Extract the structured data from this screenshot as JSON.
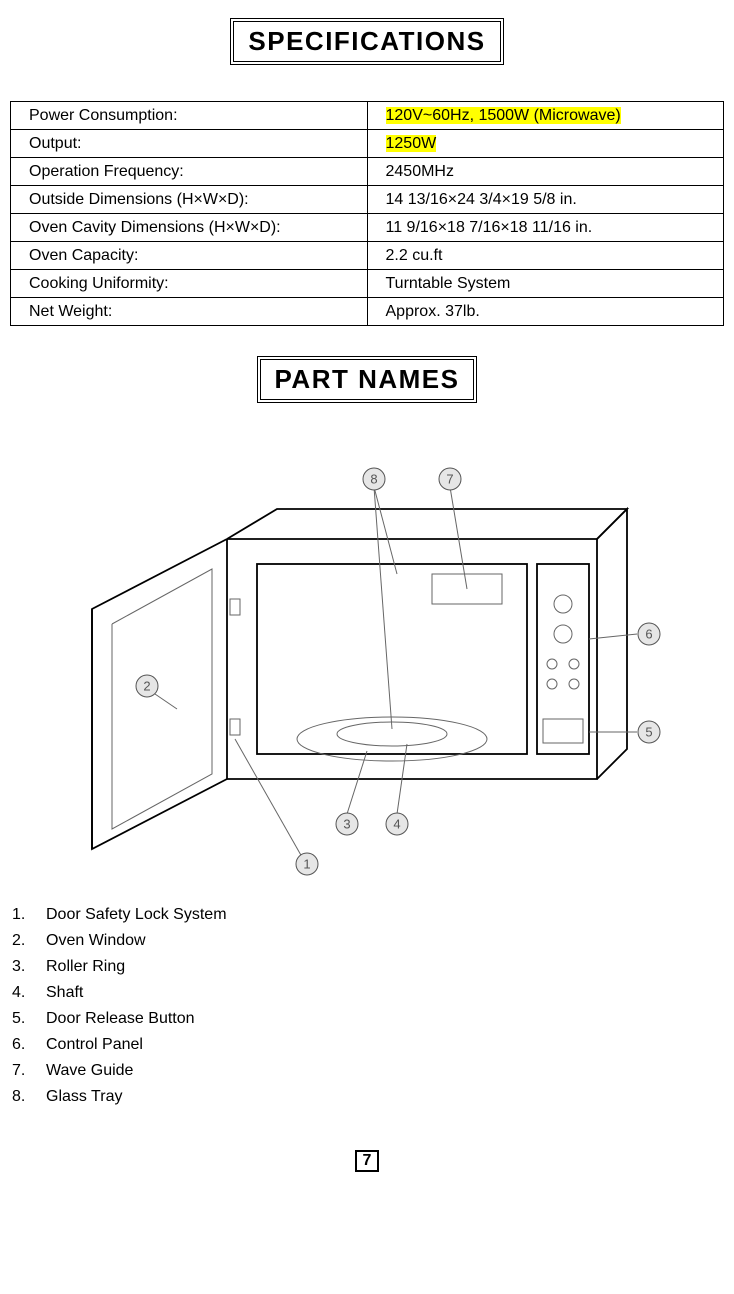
{
  "titles": {
    "specifications": "SPECIFICATIONS",
    "part_names": "PART NAMES"
  },
  "spec_table": {
    "rows": [
      {
        "label": "Power Consumption:",
        "value": "120V~60Hz, 1500W (Microwave)",
        "highlight": true
      },
      {
        "label": "Output:",
        "value": "1250W",
        "highlight": true
      },
      {
        "label": "Operation Frequency:",
        "value": "2450MHz",
        "highlight": false
      },
      {
        "label": "Outside Dimensions (H×W×D):",
        "value": "14 13/16×24 3/4×19 5/8 in.",
        "highlight": false
      },
      {
        "label": "Oven Cavity Dimensions (H×W×D):",
        "value": "11 9/16×18 7/16×18 11/16 in.",
        "highlight": false
      },
      {
        "label": "Oven Capacity:",
        "value": "2.2 cu.ft",
        "highlight": false
      },
      {
        "label": "Cooking Uniformity:",
        "value": "Turntable System",
        "highlight": false
      },
      {
        "label": "Net Weight:",
        "value": "Approx. 37lb.",
        "highlight": false
      }
    ]
  },
  "parts_list": [
    {
      "n": "1.",
      "name": "Door Safety Lock System"
    },
    {
      "n": "2.",
      "name": "Oven Window"
    },
    {
      "n": "3.",
      "name": "Roller Ring"
    },
    {
      "n": "4.",
      "name": "Shaft"
    },
    {
      "n": "5.",
      "name": "Door Release Button"
    },
    {
      "n": "6.",
      "name": "Control Panel"
    },
    {
      "n": "7.",
      "name": "Wave Guide"
    },
    {
      "n": "8.",
      "name": "Glass Tray"
    }
  ],
  "diagram": {
    "callouts": [
      "1",
      "2",
      "3",
      "4",
      "5",
      "6",
      "7",
      "8"
    ]
  },
  "page_number": "7",
  "colors": {
    "highlight_bg": "#ffff00",
    "text": "#000000",
    "callout_fill": "#e6e6e6",
    "callout_stroke": "#555555",
    "background": "#ffffff"
  },
  "typography": {
    "title_fontsize_pt": 20,
    "body_fontsize_pt": 12,
    "font_family": "Arial"
  }
}
